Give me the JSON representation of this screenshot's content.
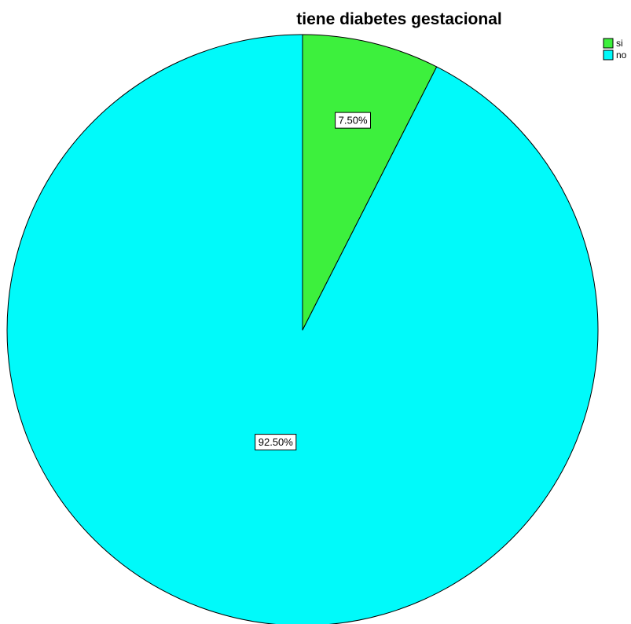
{
  "chart_data": {
    "type": "pie",
    "title": "tiene diabetes gestacional",
    "categories": [
      "si",
      "no"
    ],
    "values": [
      7.5,
      92.5
    ],
    "data_labels": [
      "7.50%",
      "92.50%"
    ],
    "colors": [
      "#3df03d",
      "#00fafa"
    ],
    "start_angle": "12 o'clock",
    "direction": "clockwise",
    "legend_position": "top-right",
    "legend": [
      {
        "label": "si",
        "color": "#3df03d"
      },
      {
        "label": "no",
        "color": "#00fafa"
      }
    ]
  }
}
